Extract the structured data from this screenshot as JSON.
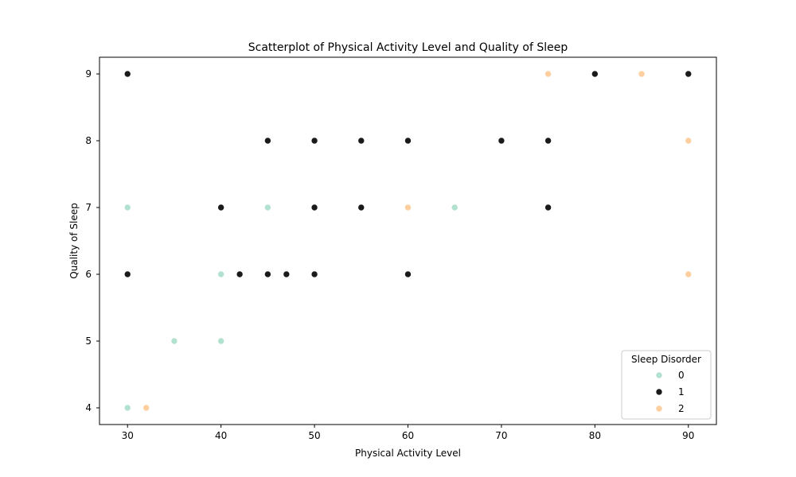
{
  "chart_data": {
    "type": "scatter",
    "title": "Scatterplot of Physical Activity Level and Quality of Sleep",
    "xlabel": "Physical Activity Level",
    "ylabel": "Quality of Sleep",
    "xlim": [
      27,
      93
    ],
    "ylim": [
      3.75,
      9.25
    ],
    "xticks": [
      30,
      40,
      50,
      60,
      70,
      80,
      90
    ],
    "yticks": [
      4,
      5,
      6,
      7,
      8,
      9
    ],
    "grid": false,
    "legend": {
      "title": "Sleep Disorder",
      "placement": "lower-right"
    },
    "series": [
      {
        "name": "0",
        "color": "#b2e2cf",
        "points": [
          [
            30,
            7
          ],
          [
            30,
            4
          ],
          [
            35,
            5
          ],
          [
            40,
            6
          ],
          [
            40,
            5
          ],
          [
            45,
            7
          ],
          [
            65,
            7
          ]
        ]
      },
      {
        "name": "1",
        "color": "#1a1a1a",
        "points": [
          [
            30,
            9
          ],
          [
            30,
            6
          ],
          [
            40,
            7
          ],
          [
            42,
            6
          ],
          [
            45,
            8
          ],
          [
            45,
            6
          ],
          [
            47,
            6
          ],
          [
            50,
            8
          ],
          [
            50,
            7
          ],
          [
            50,
            6
          ],
          [
            55,
            8
          ],
          [
            55,
            7
          ],
          [
            60,
            8
          ],
          [
            60,
            6
          ],
          [
            70,
            8
          ],
          [
            75,
            8
          ],
          [
            75,
            7
          ],
          [
            80,
            9
          ],
          [
            90,
            9
          ]
        ]
      },
      {
        "name": "2",
        "color": "#fdcf9e",
        "points": [
          [
            32,
            4
          ],
          [
            60,
            7
          ],
          [
            75,
            9
          ],
          [
            85,
            9
          ],
          [
            90,
            8
          ],
          [
            90,
            6
          ]
        ]
      }
    ]
  }
}
